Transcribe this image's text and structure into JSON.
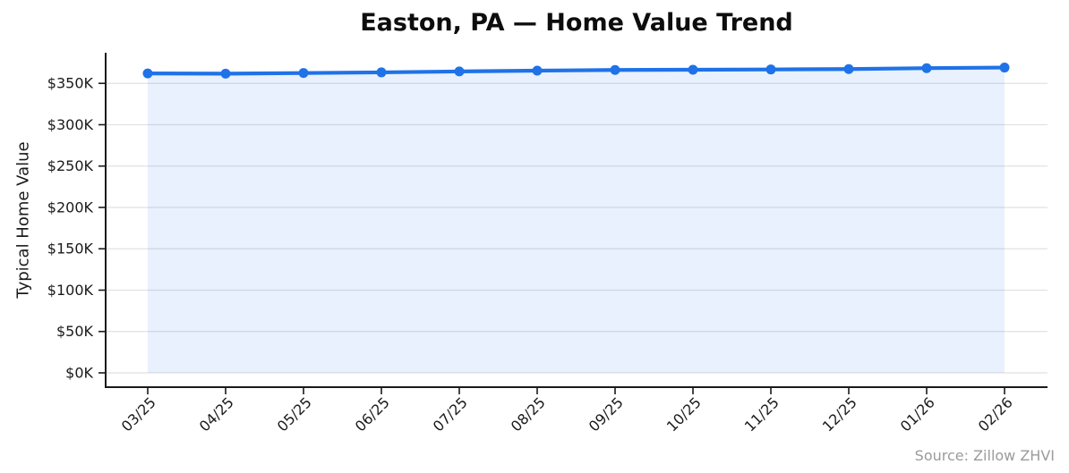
{
  "title": "Easton, PA — Home Value Trend",
  "source_note": "Source: Zillow ZHVI",
  "colors": {
    "line": "#1f72e8",
    "area_fill": "#1f72e8",
    "area_fill_opacity": 0.1,
    "grid": "#e1e1e1",
    "axis": "#1a1a1a",
    "tick_text": "#1a1a1a",
    "title_text": "#0d0d0d",
    "source_text": "#9b9b9b"
  },
  "chart_data": {
    "type": "line",
    "title": "Easton, PA — Home Value Trend",
    "xlabel": "",
    "ylabel": "Typical Home Value",
    "x": [
      "03/25",
      "04/25",
      "05/25",
      "06/25",
      "07/25",
      "08/25",
      "09/25",
      "10/25",
      "11/25",
      "12/25",
      "01/26",
      "02/26"
    ],
    "series": [
      {
        "name": "Typical Home Value",
        "unit": "USD thousands",
        "values": [
          362.0,
          361.7,
          362.5,
          363.3,
          364.4,
          365.4,
          366.2,
          366.5,
          366.8,
          367.3,
          368.4,
          369.1
        ]
      }
    ],
    "ylim": [
      0,
      387
    ],
    "yticks": {
      "values": [
        0,
        50,
        100,
        150,
        200,
        250,
        300,
        350
      ],
      "labels": [
        "$0K",
        "$50K",
        "$100K",
        "$150K",
        "$200K",
        "$250K",
        "$300K",
        "$350K"
      ]
    },
    "grid": true,
    "grid_axis": "y",
    "area_fill": true,
    "markers": true,
    "legend": "none",
    "x_tick_rotation_deg": 45,
    "annotation": "Source: Zillow ZHVI"
  }
}
